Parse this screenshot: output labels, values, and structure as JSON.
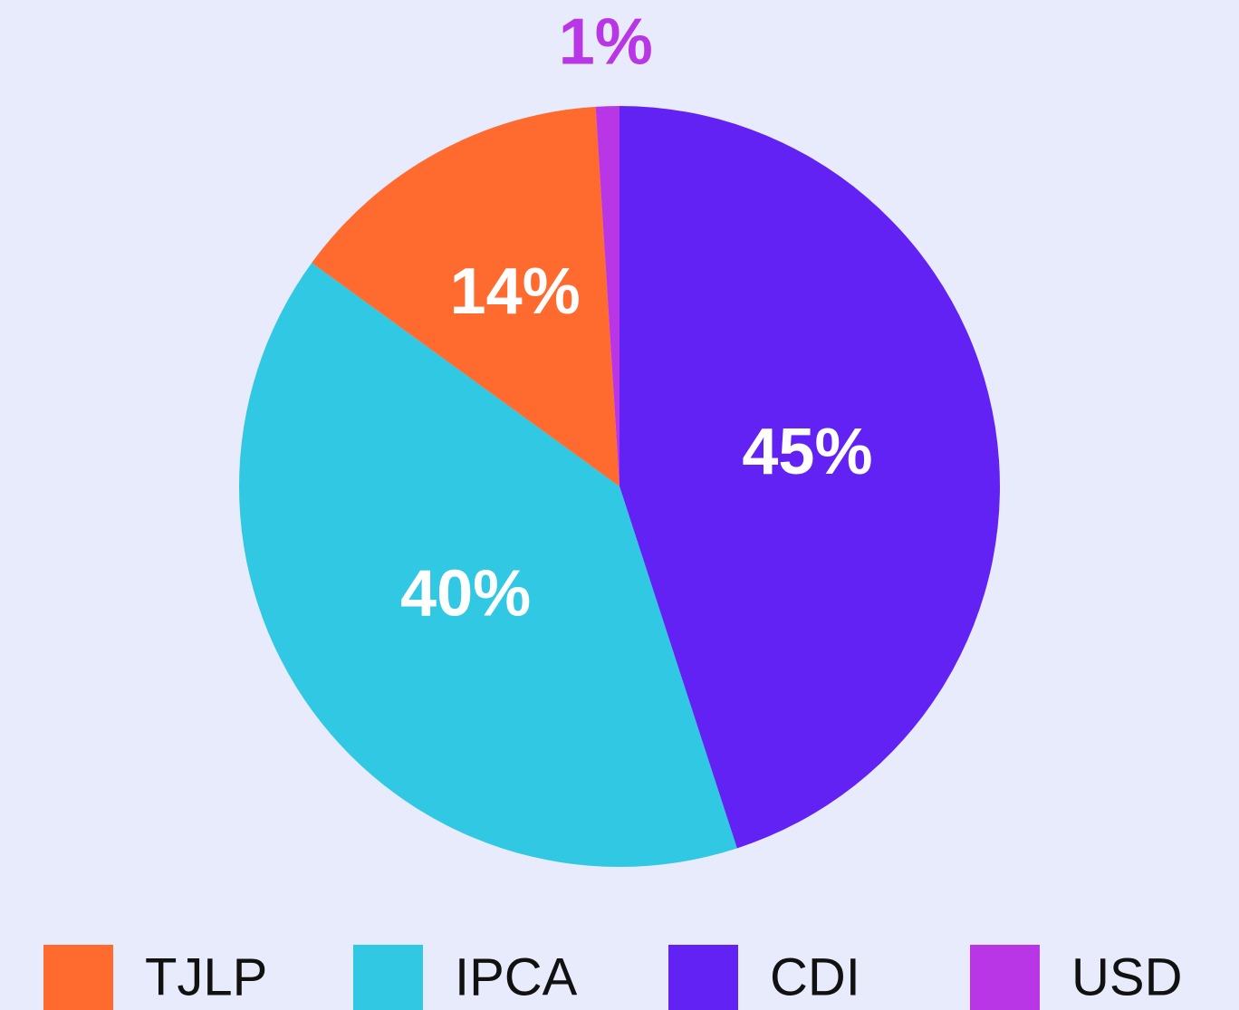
{
  "chart_data": {
    "type": "pie",
    "categories": [
      "CDI",
      "IPCA",
      "TJLP",
      "USD"
    ],
    "values": [
      45,
      40,
      14,
      1
    ],
    "value_labels": [
      "45%",
      "40%",
      "14%",
      "1%"
    ],
    "colors": [
      "#6222f4",
      "#30c8e2",
      "#ff6a2f",
      "#b836e6"
    ],
    "legend": "bottom"
  }
}
